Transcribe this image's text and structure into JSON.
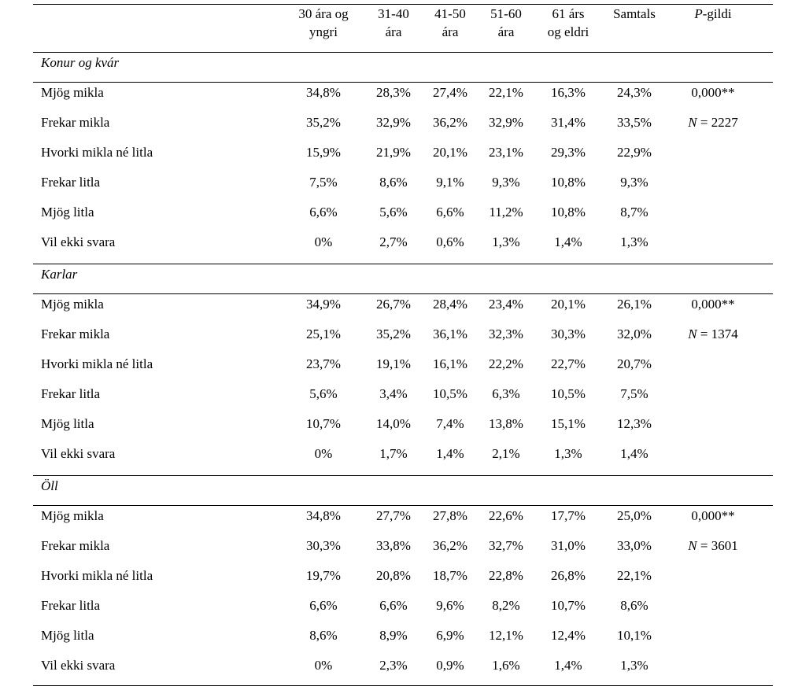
{
  "table": {
    "header": [
      [
        "30 ára og",
        "yngri"
      ],
      [
        "31-40",
        "ára"
      ],
      [
        "41-50",
        "ára"
      ],
      [
        "51-60",
        "ára"
      ],
      [
        "61 árs",
        "og eldri"
      ],
      [
        "Samtals"
      ],
      [
        [
          "P",
          "-gildi"
        ]
      ]
    ],
    "sections": [
      {
        "title": "Konur og kvár",
        "p_value": "0,000**",
        "n": [
          "N",
          " = 2227"
        ],
        "rows": [
          {
            "label": "Mjög mikla",
            "cells": [
              "34,8%",
              "28,3%",
              "27,4%",
              "22,1%",
              "16,3%",
              "24,3%"
            ]
          },
          {
            "label": "Frekar mikla",
            "cells": [
              "35,2%",
              "32,9%",
              "36,2%",
              "32,9%",
              "31,4%",
              "33,5%"
            ]
          },
          {
            "label": "Hvorki mikla né litla",
            "cells": [
              "15,9%",
              "21,9%",
              "20,1%",
              "23,1%",
              "29,3%",
              "22,9%"
            ]
          },
          {
            "label": "Frekar litla",
            "cells": [
              "7,5%",
              "8,6%",
              "9,1%",
              "9,3%",
              "10,8%",
              "9,3%"
            ]
          },
          {
            "label": "Mjög litla",
            "cells": [
              "6,6%",
              "5,6%",
              "6,6%",
              "11,2%",
              "10,8%",
              "8,7%"
            ]
          },
          {
            "label": "Vil ekki svara",
            "cells": [
              "0%",
              "2,7%",
              "0,6%",
              "1,3%",
              "1,4%",
              "1,3%"
            ]
          }
        ]
      },
      {
        "title": "Karlar",
        "p_value": "0,000**",
        "n": [
          "N",
          " = 1374"
        ],
        "rows": [
          {
            "label": "Mjög mikla",
            "cells": [
              "34,9%",
              "26,7%",
              "28,4%",
              "23,4%",
              "20,1%",
              "26,1%"
            ]
          },
          {
            "label": "Frekar mikla",
            "cells": [
              "25,1%",
              "35,2%",
              "36,1%",
              "32,3%",
              "30,3%",
              "32,0%"
            ]
          },
          {
            "label": "Hvorki mikla né litla",
            "cells": [
              "23,7%",
              "19,1%",
              "16,1%",
              "22,2%",
              "22,7%",
              "20,7%"
            ]
          },
          {
            "label": "Frekar litla",
            "cells": [
              "5,6%",
              "3,4%",
              "10,5%",
              "6,3%",
              "10,5%",
              "7,5%"
            ]
          },
          {
            "label": "Mjög litla",
            "cells": [
              "10,7%",
              "14,0%",
              "7,4%",
              "13,8%",
              "15,1%",
              "12,3%"
            ]
          },
          {
            "label": "Vil ekki svara",
            "cells": [
              "0%",
              "1,7%",
              "1,4%",
              "2,1%",
              "1,3%",
              "1,4%"
            ]
          }
        ]
      },
      {
        "title": "Öll",
        "p_value": "0,000**",
        "n": [
          "N",
          " = 3601"
        ],
        "rows": [
          {
            "label": "Mjög mikla",
            "cells": [
              "34,8%",
              "27,7%",
              "27,8%",
              "22,6%",
              "17,7%",
              "25,0%"
            ]
          },
          {
            "label": "Frekar mikla",
            "cells": [
              "30,3%",
              "33,8%",
              "36,2%",
              "32,7%",
              "31,0%",
              "33,0%"
            ]
          },
          {
            "label": "Hvorki mikla né litla",
            "cells": [
              "19,7%",
              "20,8%",
              "18,7%",
              "22,8%",
              "26,8%",
              "22,1%"
            ]
          },
          {
            "label": "Frekar litla",
            "cells": [
              "6,6%",
              "6,6%",
              "9,6%",
              "8,2%",
              "10,7%",
              "8,6%"
            ]
          },
          {
            "label": "Mjög litla",
            "cells": [
              "8,6%",
              "8,9%",
              "6,9%",
              "12,1%",
              "12,4%",
              "10,1%"
            ]
          },
          {
            "label": "Vil ekki svara",
            "cells": [
              "0%",
              "2,3%",
              "0,9%",
              "1,6%",
              "1,4%",
              "1,3%"
            ]
          }
        ]
      }
    ]
  }
}
